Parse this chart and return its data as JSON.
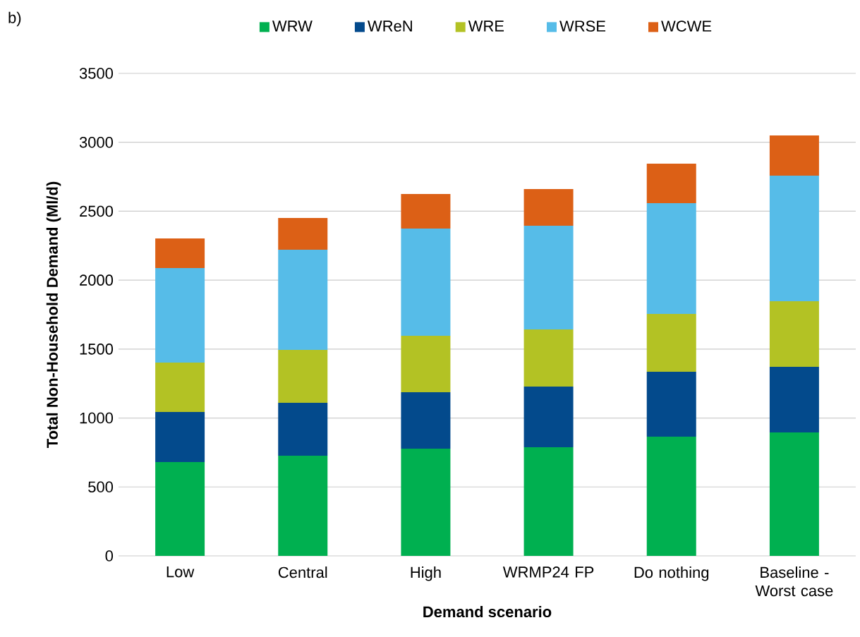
{
  "chart_data": {
    "type": "bar",
    "stacked": true,
    "categories": [
      "Low",
      "Central",
      "High",
      "WRMP24 FP",
      "Do nothing",
      "Baseline - Worst case"
    ],
    "series": [
      {
        "name": "WRW",
        "color": "#00b050",
        "values": [
          680,
          727,
          778,
          788,
          865,
          895
        ]
      },
      {
        "name": "WReN",
        "color": "#034a8c",
        "values": [
          364,
          383,
          409,
          440,
          471,
          476
        ]
      },
      {
        "name": "WRE",
        "color": "#b3c224",
        "values": [
          358,
          384,
          410,
          415,
          419,
          476
        ]
      },
      {
        "name": "WRSE",
        "color": "#56bce8",
        "values": [
          686,
          727,
          777,
          752,
          804,
          911
        ]
      },
      {
        "name": "WCWE",
        "color": "#dc6016",
        "values": [
          215,
          230,
          251,
          266,
          286,
          292
        ]
      }
    ],
    "xlabel": "Demand scenario",
    "ylabel": "Total Non-Household Demand (Ml/d)",
    "ylim": [
      0,
      3500
    ],
    "yticks": [
      0,
      500,
      1000,
      1500,
      2000,
      2500,
      3000,
      3500
    ],
    "grid": "y",
    "legend": "top",
    "annotations": [
      "b)"
    ]
  }
}
